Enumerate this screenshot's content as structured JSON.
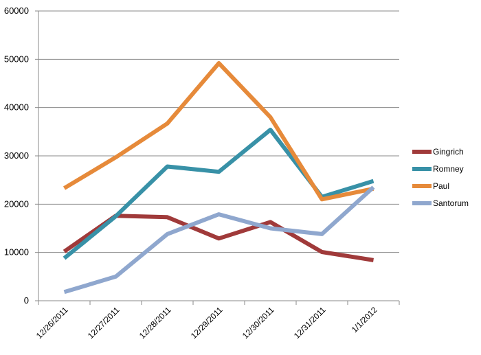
{
  "chart_data": {
    "type": "line",
    "title": "",
    "xlabel": "",
    "ylabel": "",
    "categories": [
      "12/26/2011",
      "12/27/2011",
      "12/28/2011",
      "12/29/2011",
      "12/30/2011",
      "12/31/2011",
      "1/1/2012"
    ],
    "ylim": [
      0,
      60000
    ],
    "yticks": [
      "0",
      "10000",
      "20000",
      "30000",
      "40000",
      "50000",
      "60000"
    ],
    "grid": true,
    "legend_position": "right",
    "series": [
      {
        "name": "Gingrich",
        "color": "#A03A3A",
        "values": [
          10200,
          17600,
          17300,
          12900,
          16300,
          10100,
          8400
        ]
      },
      {
        "name": "Romney",
        "color": "#3891A7",
        "values": [
          8800,
          17500,
          27800,
          26700,
          35400,
          21500,
          24800
        ]
      },
      {
        "name": "Paul",
        "color": "#E68A3A",
        "values": [
          23300,
          29700,
          36700,
          49200,
          38000,
          21000,
          23200
        ]
      },
      {
        "name": "Santorum",
        "color": "#8FA7CE",
        "values": [
          1800,
          5000,
          13800,
          17900,
          15000,
          13800,
          23500
        ]
      }
    ]
  }
}
